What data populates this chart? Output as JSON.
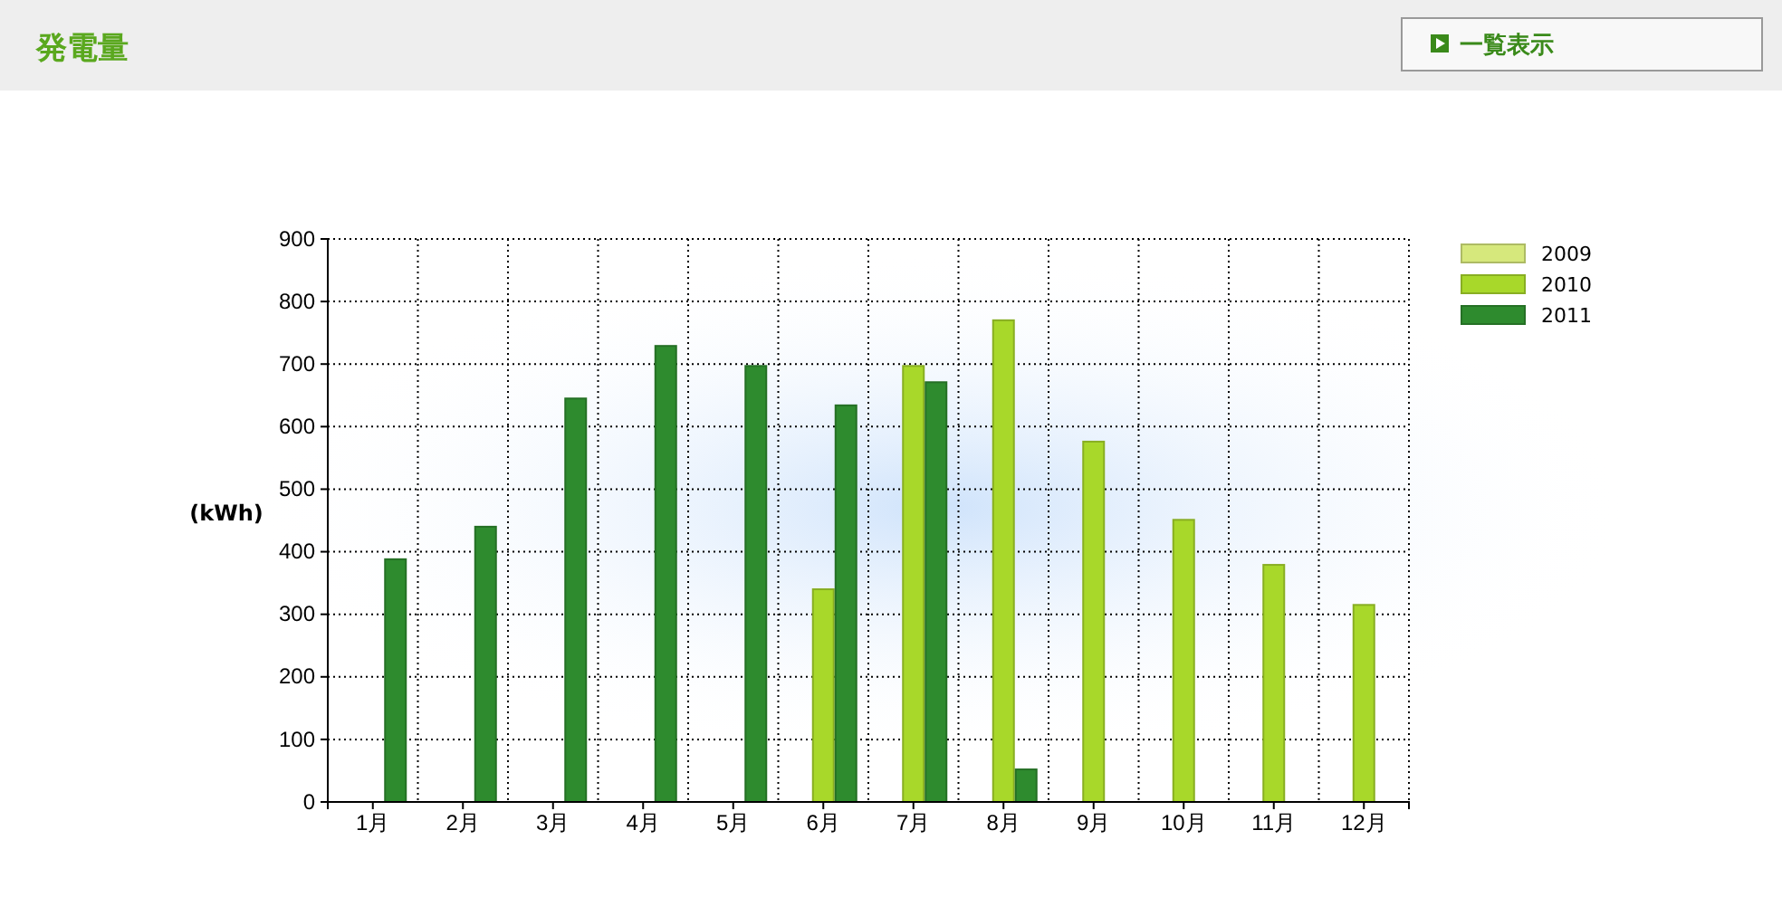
{
  "chart_data": {
    "type": "bar",
    "title": "発電量",
    "ylabel": "(kWh)",
    "annotations": [
      "一覧表示"
    ],
    "categories": [
      "1月",
      "2月",
      "3月",
      "4月",
      "5月",
      "6月",
      "7月",
      "8月",
      "9月",
      "10月",
      "11月",
      "12月"
    ],
    "series": [
      {
        "name": "2009",
        "color": "#d6e87c",
        "values": [
          null,
          null,
          null,
          null,
          null,
          null,
          null,
          null,
          null,
          null,
          null,
          null
        ]
      },
      {
        "name": "2010",
        "color": "#a8d82a",
        "values": [
          null,
          null,
          null,
          null,
          null,
          340,
          697,
          770,
          576,
          451,
          379,
          315
        ]
      },
      {
        "name": "2011",
        "color": "#2e8b2e",
        "values": [
          388,
          440,
          645,
          729,
          697,
          634,
          671,
          52,
          null,
          null,
          null,
          null
        ]
      }
    ],
    "ylim": [
      0,
      900
    ],
    "yticks": [
      0,
      100,
      200,
      300,
      400,
      500,
      600,
      700,
      800,
      900
    ],
    "grid": true,
    "legend": "top right"
  }
}
